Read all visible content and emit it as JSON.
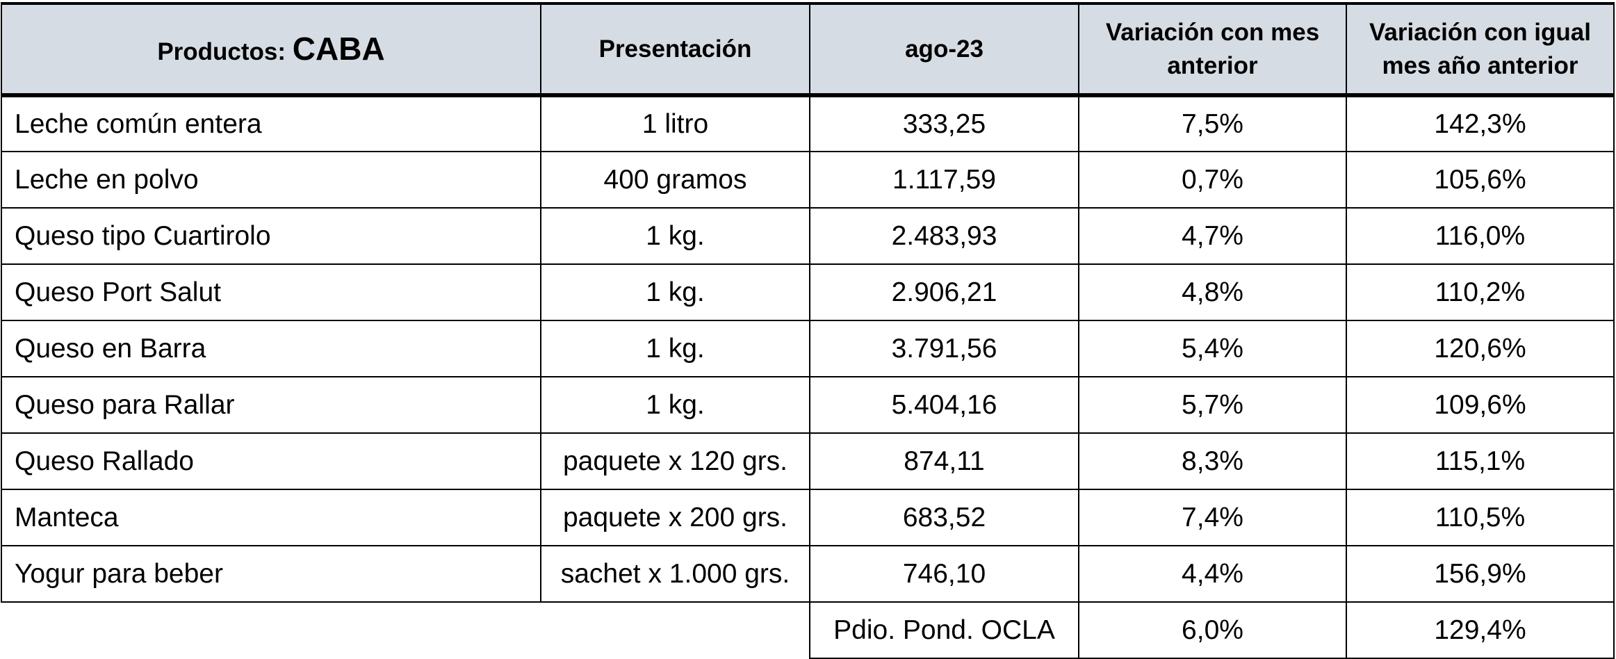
{
  "header": {
    "product_label": "Productos:",
    "region": "CABA",
    "columns": [
      "Presentación",
      "ago-23",
      "Variación con mes anterior",
      "Variación con igual mes año anterior"
    ]
  },
  "table": {
    "rows": [
      [
        "Leche común entera",
        "1 litro",
        "333,25",
        "7,5%",
        "142,3%"
      ],
      [
        "Leche en polvo",
        "400 gramos",
        "1.117,59",
        "0,7%",
        "105,6%"
      ],
      [
        "Queso tipo Cuartirolo",
        "1 kg.",
        "2.483,93",
        "4,7%",
        "116,0%"
      ],
      [
        "Queso Port Salut",
        "1 kg.",
        "2.906,21",
        "4,8%",
        "110,2%"
      ],
      [
        "Queso en Barra",
        "1 kg.",
        "3.791,56",
        "5,4%",
        "120,6%"
      ],
      [
        "Queso para Rallar",
        "1 kg.",
        "5.404,16",
        "5,7%",
        "109,6%"
      ],
      [
        "Queso Rallado",
        "paquete x 120 grs.",
        "874,11",
        "8,3%",
        "115,1%"
      ],
      [
        "Manteca",
        "paquete x 200 grs.",
        "683,52",
        "7,4%",
        "110,5%"
      ],
      [
        "Yogur para beber",
        "sachet x 1.000 grs.",
        "746,10",
        "4,4%",
        "156,9%"
      ]
    ]
  },
  "footer": {
    "label": "Pdio. Pond. OCLA",
    "values": [
      "6,0%",
      "129,4%"
    ]
  }
}
